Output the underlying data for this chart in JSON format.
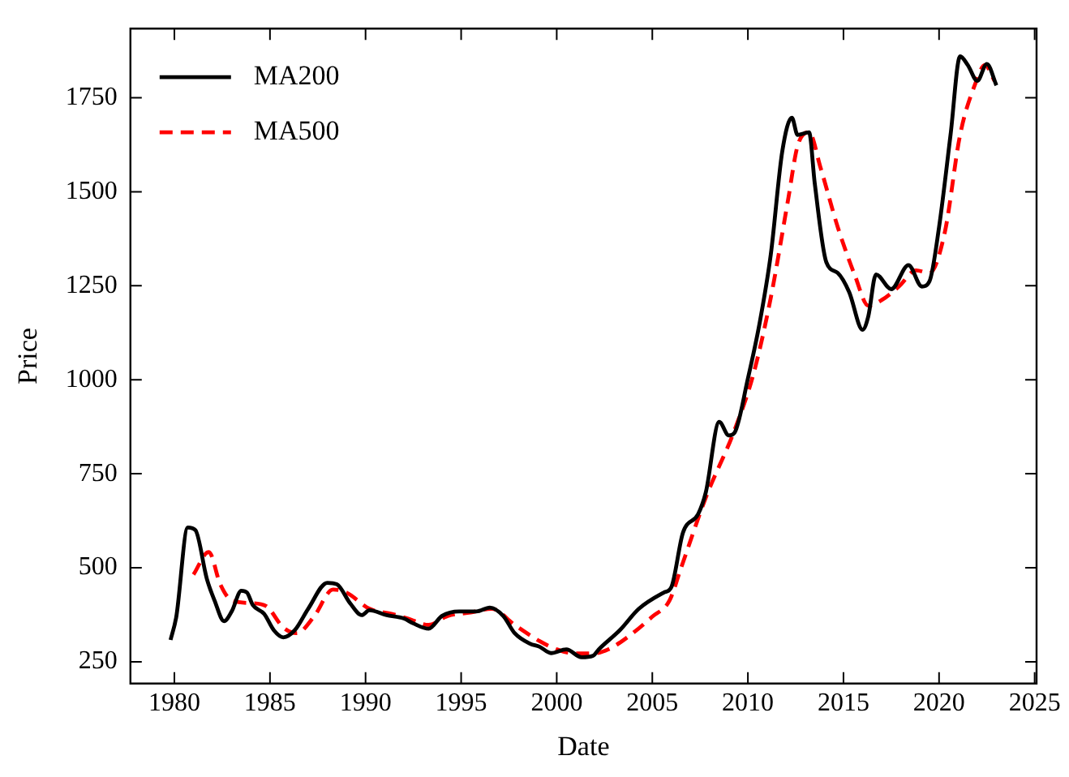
{
  "chart_data": {
    "type": "line",
    "xlabel": "Date",
    "ylabel": "Price",
    "xlim": [
      1977.7,
      2025.1
    ],
    "ylim": [
      192,
      1934
    ],
    "xticks": [
      1980,
      1985,
      1990,
      1995,
      2000,
      2005,
      2010,
      2015,
      2020,
      2025
    ],
    "yticks": [
      250,
      500,
      750,
      1000,
      1250,
      1500,
      1750
    ],
    "grid": false,
    "legend": "top left",
    "series": [
      {
        "name": "MA200",
        "color": "#000000",
        "line_style": "solid",
        "x": [
          1979.8,
          1980.1,
          1980.7,
          1981.1,
          1981.7,
          1982.1,
          1982.6,
          1983.0,
          1983.5,
          1983.8,
          1984.1,
          1984.7,
          1985.2,
          1985.7,
          1986.3,
          1987.0,
          1988.0,
          1988.5,
          1989.2,
          1989.8,
          1990.2,
          1991.1,
          1992.0,
          1992.5,
          1993.3,
          1994.0,
          1994.9,
          1995.8,
          1996.5,
          1997.2,
          1997.8,
          1998.6,
          1999.1,
          1999.7,
          2000.5,
          2001.3,
          2001.9,
          2002.2,
          2003.3,
          2004.3,
          2005.6,
          2006.0,
          2006.6,
          2007.4,
          2007.8,
          2008.5,
          2009.0,
          2009.3,
          2010.0,
          2010.6,
          2011.2,
          2011.8,
          2012.3,
          2012.6,
          2013.2,
          2013.5,
          2014.1,
          2014.7,
          2015.3,
          2016.0,
          2016.3,
          2016.7,
          2017.5,
          2018.4,
          2019.1,
          2019.5,
          2020.0,
          2020.6,
          2021.1,
          2021.5,
          2022.0,
          2022.5,
          2023.0
        ],
        "values": [
          308,
          370,
          607,
          600,
          470,
          413,
          358,
          384,
          439,
          434,
          401,
          377,
          334,
          315,
          334,
          391,
          460,
          456,
          405,
          374,
          387,
          374,
          365,
          352,
          338,
          372,
          384,
          384,
          394,
          372,
          326,
          298,
          290,
          273,
          283,
          262,
          266,
          283,
          334,
          391,
          434,
          449,
          593,
          643,
          701,
          888,
          852,
          859,
          1003,
          1147,
          1334,
          1608,
          1697,
          1651,
          1658,
          1521,
          1313,
          1284,
          1233,
          1133,
          1169,
          1280,
          1241,
          1305,
          1248,
          1262,
          1406,
          1651,
          1860,
          1837,
          1795,
          1840,
          1783
        ]
      },
      {
        "name": "MA500",
        "color": "#ff0000",
        "line_style": "dashed",
        "x": [
          1981.0,
          1981.8,
          1982.4,
          1983.0,
          1984.0,
          1984.8,
          1985.7,
          1986.4,
          1987.3,
          1988.3,
          1989.0,
          1990.2,
          1991.4,
          1992.2,
          1993.3,
          1994.3,
          1995.5,
          1996.6,
          1997.8,
          1999.1,
          2000.0,
          2001.0,
          2001.9,
          2002.7,
          2003.8,
          2005.0,
          2005.9,
          2006.5,
          2007.8,
          2009.3,
          2010.3,
          2011.2,
          2012.1,
          2012.6,
          2013.2,
          2013.8,
          2014.7,
          2015.6,
          2016.3,
          2017.0,
          2017.9,
          2018.8,
          2019.5,
          2020.3,
          2021.1,
          2021.9,
          2022.4,
          2022.9
        ],
        "values": [
          482,
          542,
          456,
          413,
          406,
          398,
          341,
          326,
          370,
          442,
          434,
          391,
          377,
          365,
          348,
          372,
          381,
          391,
          348,
          305,
          283,
          272,
          272,
          283,
          319,
          370,
          413,
          499,
          687,
          866,
          1017,
          1219,
          1478,
          1622,
          1658,
          1564,
          1406,
          1277,
          1197,
          1212,
          1248,
          1291,
          1284,
          1392,
          1651,
          1788,
          1837,
          1795
        ]
      }
    ]
  }
}
